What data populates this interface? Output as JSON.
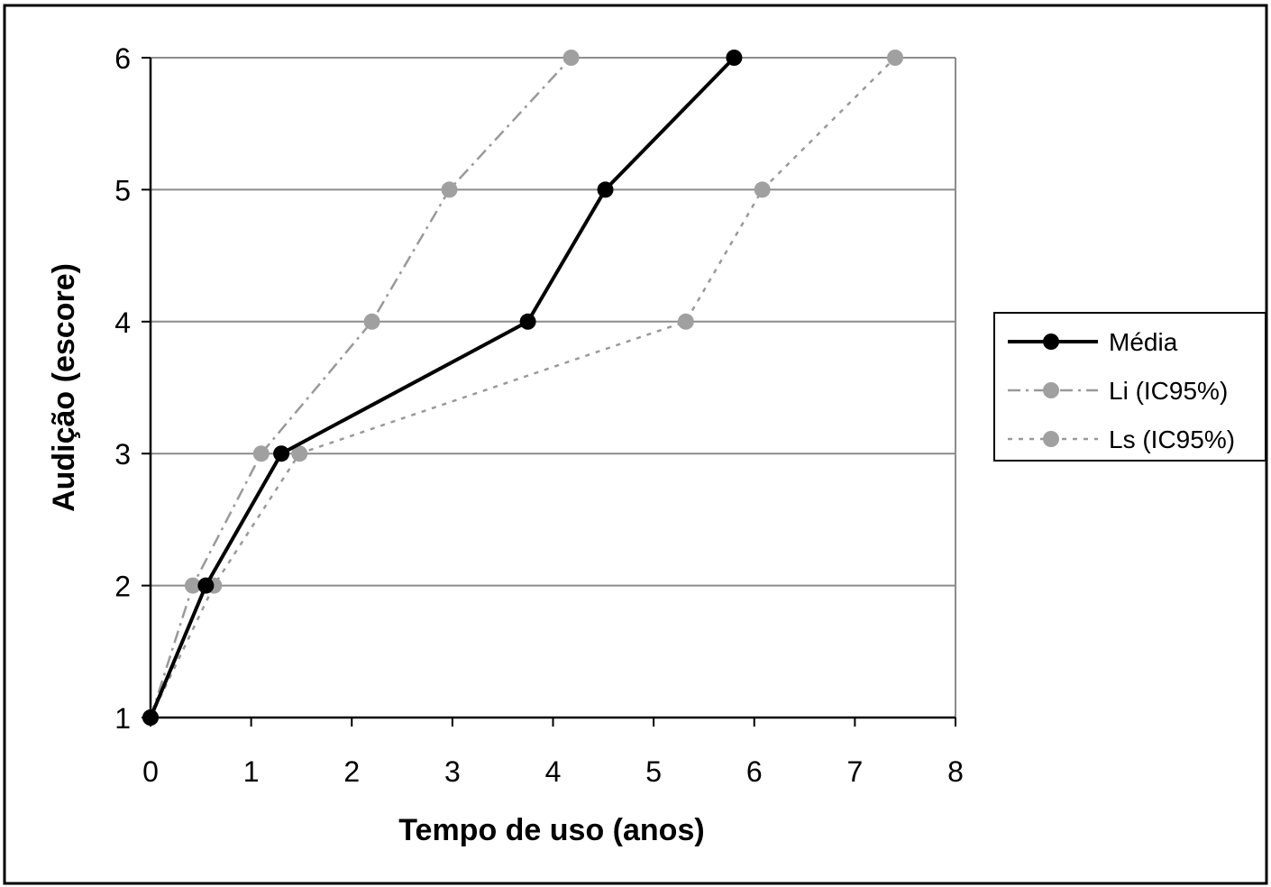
{
  "chart_data": {
    "type": "line",
    "xlabel": "Tempo de uso (anos)",
    "ylabel": "Audição (escore)",
    "xlim": [
      0,
      8
    ],
    "ylim": [
      1,
      6
    ],
    "x_ticks": [
      "0",
      "1",
      "2",
      "3",
      "4",
      "5",
      "6",
      "7",
      "8"
    ],
    "y_ticks": [
      "1",
      "2",
      "3",
      "4",
      "5",
      "6"
    ],
    "grid": "horizontal",
    "legend_position": "right",
    "series": [
      {
        "name": "Média",
        "color": "#000000",
        "line_style": "solid",
        "points": [
          {
            "x": 0,
            "y": 1
          },
          {
            "x": 0.55,
            "y": 2
          },
          {
            "x": 1.3,
            "y": 3
          },
          {
            "x": 3.75,
            "y": 4
          },
          {
            "x": 4.52,
            "y": 5
          },
          {
            "x": 5.8,
            "y": 6
          }
        ]
      },
      {
        "name": "Li (IC95%)",
        "color": "#999999",
        "line_style": "dash-dot",
        "points": [
          {
            "x": 0,
            "y": 1
          },
          {
            "x": 0.42,
            "y": 2
          },
          {
            "x": 1.1,
            "y": 3
          },
          {
            "x": 2.2,
            "y": 4
          },
          {
            "x": 2.97,
            "y": 5
          },
          {
            "x": 4.18,
            "y": 6
          }
        ]
      },
      {
        "name": "Ls (IC95%)",
        "color": "#999999",
        "line_style": "dotted",
        "points": [
          {
            "x": 0,
            "y": 1
          },
          {
            "x": 0.63,
            "y": 2
          },
          {
            "x": 1.48,
            "y": 3
          },
          {
            "x": 5.32,
            "y": 4
          },
          {
            "x": 6.08,
            "y": 5
          },
          {
            "x": 7.4,
            "y": 6
          }
        ]
      }
    ]
  }
}
